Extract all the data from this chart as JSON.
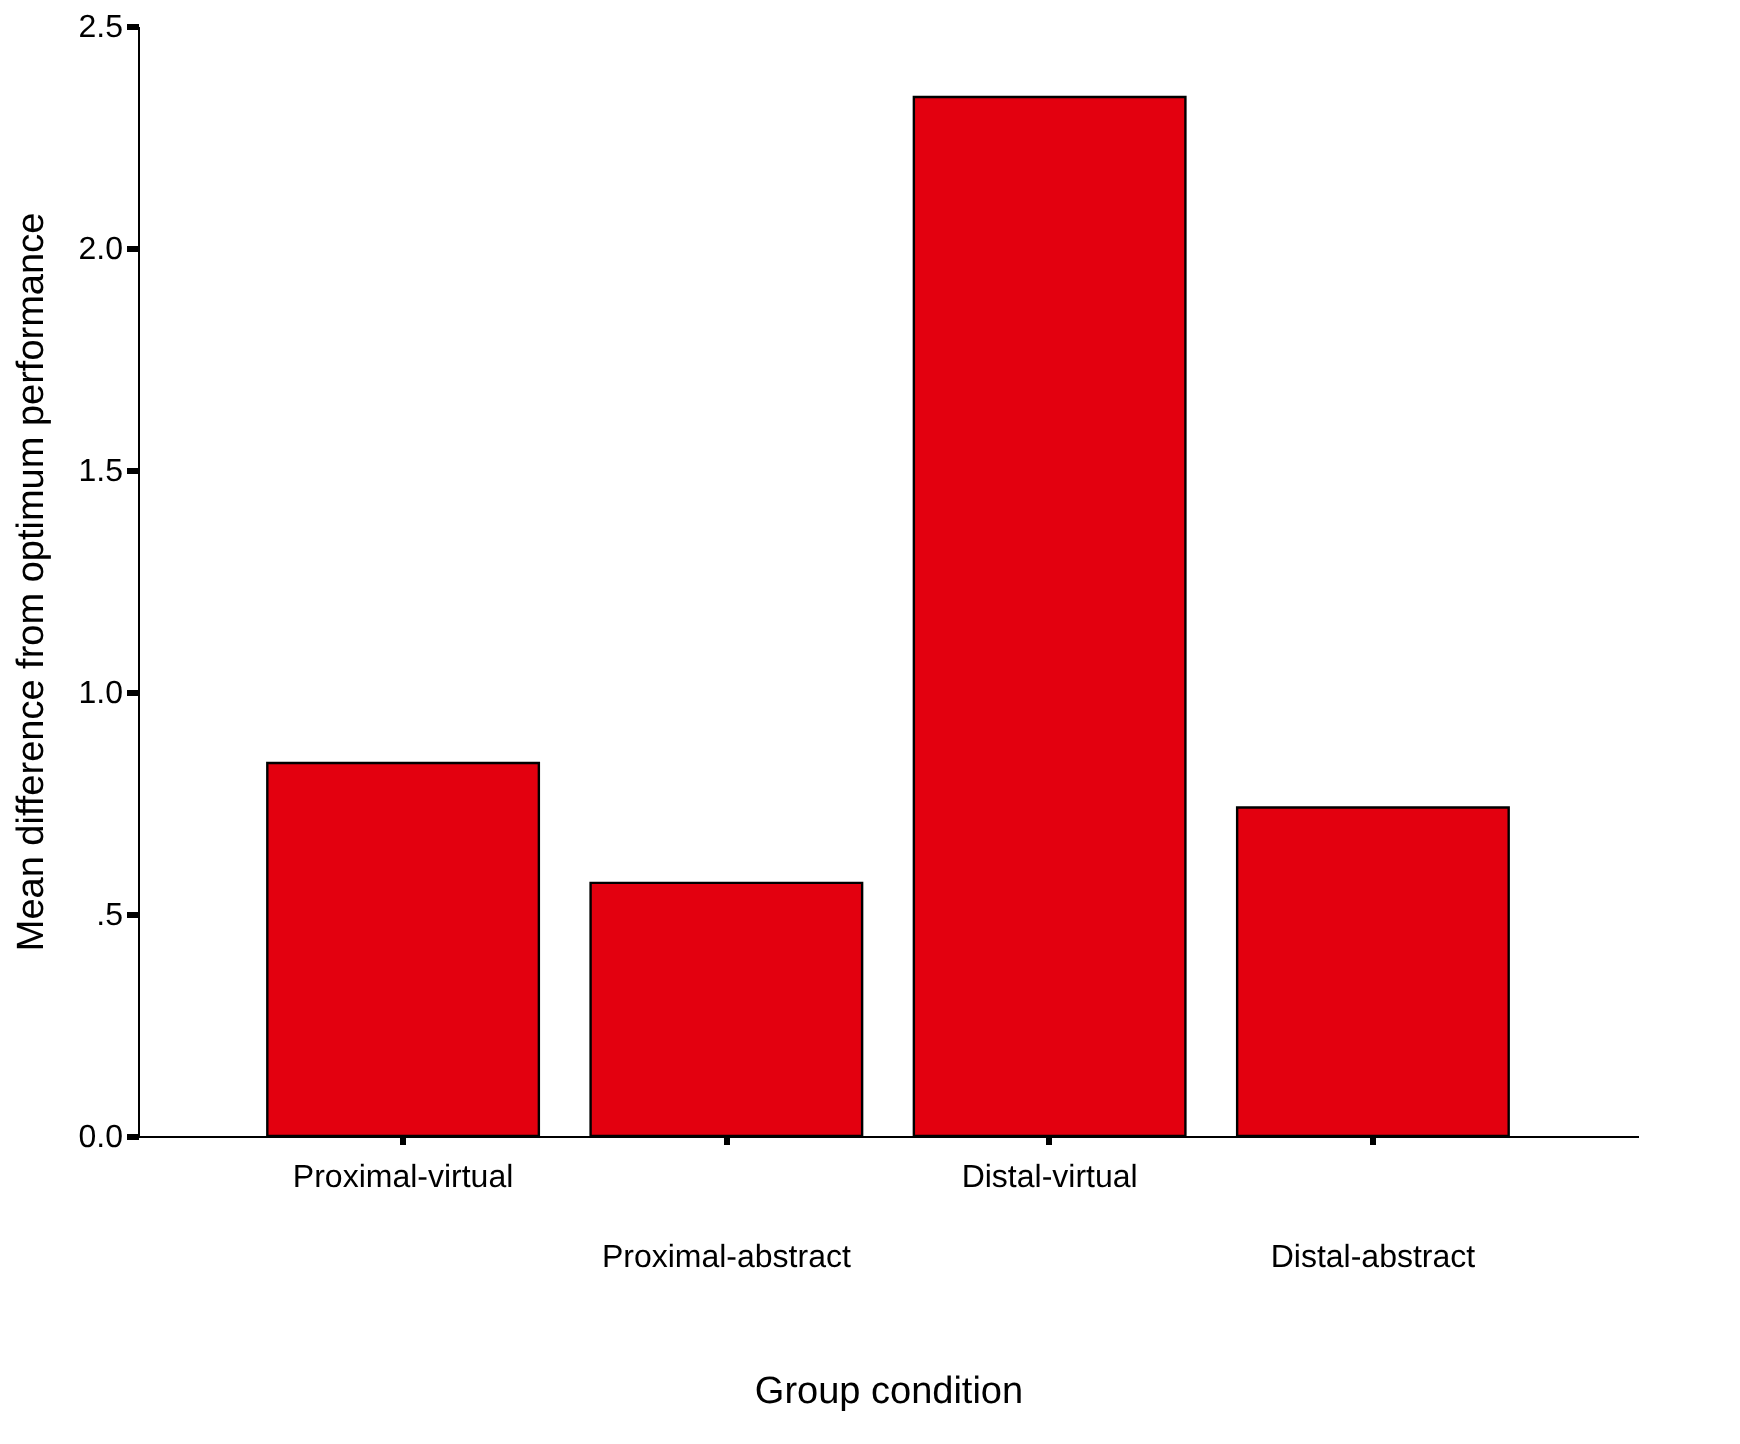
{
  "chart_data": {
    "type": "bar",
    "xlabel": "Group condition",
    "ylabel": "Mean difference from optimum performance",
    "categories": [
      "Proximal-virtual",
      "Proximal-abstract",
      "Distal-virtual",
      "Distal-abstract"
    ],
    "values": [
      0.84,
      0.57,
      2.34,
      0.74
    ],
    "color": "#e3000f",
    "ylim": [
      0,
      2.5
    ],
    "yticks": [
      {
        "value": 0,
        "label": "0.0"
      },
      {
        "value": 0.5,
        "label": ".5"
      },
      {
        "value": 1,
        "label": "1.0"
      },
      {
        "value": 1.5,
        "label": "1.5"
      },
      {
        "value": 2,
        "label": "2.0"
      },
      {
        "value": 2.5,
        "label": "2.5"
      }
    ],
    "grid": false
  }
}
